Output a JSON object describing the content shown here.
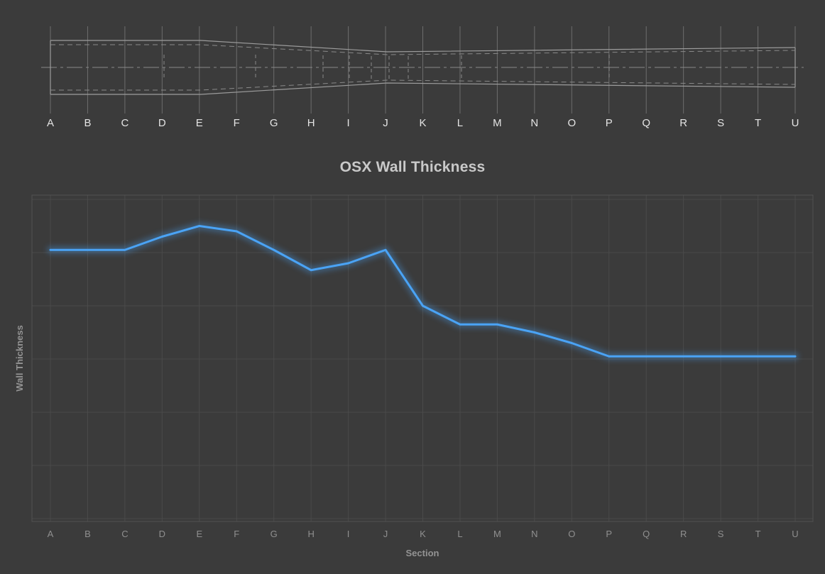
{
  "window": {
    "background": "#3b3b3b"
  },
  "profile_diagram": {
    "sections": [
      "A",
      "B",
      "C",
      "D",
      "E",
      "F",
      "G",
      "H",
      "I",
      "J",
      "K",
      "L",
      "M",
      "N",
      "O",
      "P",
      "Q",
      "R",
      "S",
      "T",
      "U"
    ]
  },
  "chart_data": {
    "type": "line",
    "title": "OSX Wall Thickness",
    "xlabel": "Section",
    "ylabel": "Wall Thickness",
    "categories": [
      "A",
      "B",
      "C",
      "D",
      "E",
      "F",
      "G",
      "H",
      "I",
      "J",
      "K",
      "L",
      "M",
      "N",
      "O",
      "P",
      "Q",
      "R",
      "S",
      "T",
      "U"
    ],
    "series": [
      {
        "name": "Wall Thickness",
        "values": [
          5.05,
          5.05,
          5.05,
          5.3,
          5.5,
          5.4,
          5.05,
          4.67,
          4.8,
          5.05,
          4.0,
          3.65,
          3.65,
          3.5,
          3.3,
          3.05,
          3.05,
          3.05,
          3.05,
          3.05,
          3.05
        ]
      }
    ],
    "ylim": [
      0,
      6
    ],
    "y_tick_labels_visible": false,
    "grid": true,
    "legend": "none",
    "line_color": "#4aa3f5"
  }
}
